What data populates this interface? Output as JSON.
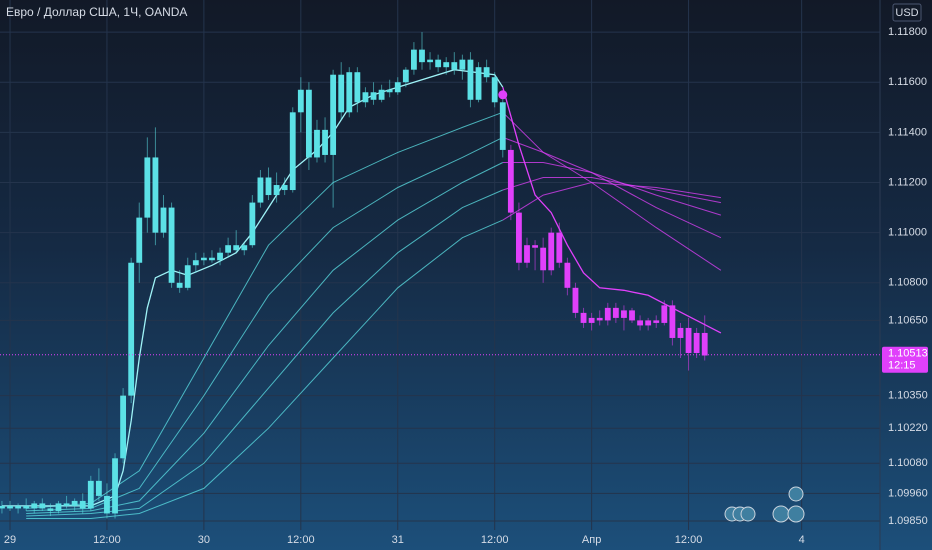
{
  "chart_data": {
    "type": "candlestick",
    "title": "Евро / Доллар США, 1Ч, OANDA",
    "currency": "USD",
    "grid": true,
    "ylim": [
      1.09814,
      1.11928
    ],
    "yticks": [
      {
        "value": 1.118,
        "label": "1.11800"
      },
      {
        "value": 1.116,
        "label": "1.11600"
      },
      {
        "value": 1.114,
        "label": "1.11400"
      },
      {
        "value": 1.112,
        "label": "1.11200"
      },
      {
        "value": 1.11,
        "label": "1.11000"
      },
      {
        "value": 1.108,
        "label": "1.10800"
      },
      {
        "value": 1.1065,
        "label": "1.10650"
      },
      {
        "value": 1.1035,
        "label": "1.10350"
      },
      {
        "value": 1.1022,
        "label": "1.10220"
      },
      {
        "value": 1.1008,
        "label": "1.10080"
      },
      {
        "value": 1.0996,
        "label": "1.09960"
      },
      {
        "value": 1.0985,
        "label": "1.09850"
      }
    ],
    "xlim": [
      -1.24,
      107.7
    ],
    "xticks": [
      {
        "value": 0,
        "label": "29"
      },
      {
        "value": 12,
        "label": "12:00"
      },
      {
        "value": 24,
        "label": "30"
      },
      {
        "value": 36,
        "label": "12:00"
      },
      {
        "value": 48,
        "label": "31"
      },
      {
        "value": 60,
        "label": "12:00"
      },
      {
        "value": 72,
        "label": "Апр"
      },
      {
        "value": 84,
        "label": "12:00"
      },
      {
        "value": 98,
        "label": "4"
      }
    ],
    "last_price": 1.10513,
    "countdown": "12:15",
    "last_price_color": "#e040fb",
    "series": [
      {
        "color": "#5ce1e6",
        "x": [
          -1,
          0,
          1,
          2,
          3,
          4,
          5,
          6,
          7,
          8,
          9,
          10,
          11,
          12,
          13,
          14,
          15,
          16,
          17,
          18,
          19,
          20,
          21,
          22,
          23,
          24,
          25,
          26,
          27,
          28,
          29,
          30,
          31,
          32,
          33,
          34,
          35,
          36,
          37,
          38,
          39,
          40,
          41,
          42,
          43,
          44,
          45,
          46,
          47,
          48,
          49,
          50,
          51,
          52,
          53,
          54,
          55,
          56,
          57,
          58,
          59,
          60,
          61
        ],
        "ohlc": [
          [
            1.099,
            1.0993,
            1.0988,
            1.0991
          ],
          [
            1.0991,
            1.0993,
            1.0989,
            1.099
          ],
          [
            1.099,
            1.0992,
            1.0988,
            1.0991
          ],
          [
            1.0991,
            1.0994,
            1.0989,
            1.099
          ],
          [
            1.099,
            1.0993,
            1.0988,
            1.0992
          ],
          [
            1.0992,
            1.0994,
            1.0989,
            1.099
          ],
          [
            1.099,
            1.0992,
            1.0987,
            1.0989
          ],
          [
            1.0989,
            1.0993,
            1.0988,
            1.0992
          ],
          [
            1.0992,
            1.0995,
            1.099,
            1.0991
          ],
          [
            1.0991,
            1.0994,
            1.0989,
            1.0993
          ],
          [
            1.0993,
            1.0996,
            1.0988,
            1.099
          ],
          [
            1.099,
            1.1003,
            1.0989,
            1.1001
          ],
          [
            1.1001,
            1.1006,
            1.0993,
            1.0995
          ],
          [
            1.0995,
            1.1,
            1.0986,
            1.0988
          ],
          [
            1.0988,
            1.1012,
            1.0986,
            1.101
          ],
          [
            1.101,
            1.1038,
            1.1008,
            1.1035
          ],
          [
            1.1035,
            1.109,
            1.1032,
            1.1088
          ],
          [
            1.1088,
            1.1112,
            1.108,
            1.1106
          ],
          [
            1.1106,
            1.1138,
            1.11,
            1.113
          ],
          [
            1.113,
            1.1142,
            1.1095,
            1.11
          ],
          [
            1.11,
            1.1115,
            1.1098,
            1.111
          ],
          [
            1.111,
            1.1112,
            1.1078,
            1.108
          ],
          [
            1.108,
            1.1085,
            1.1076,
            1.1078
          ],
          [
            1.1078,
            1.109,
            1.1077,
            1.1087
          ],
          [
            1.1087,
            1.1092,
            1.1084,
            1.1089
          ],
          [
            1.1089,
            1.1092,
            1.1087,
            1.109
          ],
          [
            1.109,
            1.1093,
            1.1088,
            1.1089
          ],
          [
            1.1089,
            1.1094,
            1.1087,
            1.1092
          ],
          [
            1.1092,
            1.1098,
            1.109,
            1.1095
          ],
          [
            1.1095,
            1.1101,
            1.1092,
            1.1093
          ],
          [
            1.1093,
            1.1096,
            1.1091,
            1.1095
          ],
          [
            1.1095,
            1.1115,
            1.1094,
            1.1112
          ],
          [
            1.1112,
            1.1125,
            1.111,
            1.1122
          ],
          [
            1.1122,
            1.1126,
            1.1113,
            1.1115
          ],
          [
            1.1115,
            1.1124,
            1.1112,
            1.1119
          ],
          [
            1.1119,
            1.1122,
            1.1115,
            1.1117
          ],
          [
            1.1117,
            1.115,
            1.1116,
            1.1148
          ],
          [
            1.1148,
            1.1162,
            1.114,
            1.1157
          ],
          [
            1.1157,
            1.116,
            1.1125,
            1.113
          ],
          [
            1.113,
            1.1145,
            1.1128,
            1.1141
          ],
          [
            1.1141,
            1.1146,
            1.1128,
            1.1131
          ],
          [
            1.1131,
            1.1165,
            1.111,
            1.1163
          ],
          [
            1.1163,
            1.1168,
            1.1145,
            1.1148
          ],
          [
            1.1148,
            1.1166,
            1.1146,
            1.1164
          ],
          [
            1.1164,
            1.1166,
            1.1148,
            1.1152
          ],
          [
            1.1152,
            1.1158,
            1.115,
            1.1156
          ],
          [
            1.1156,
            1.116,
            1.1151,
            1.1153
          ],
          [
            1.1153,
            1.1159,
            1.1152,
            1.1157
          ],
          [
            1.1157,
            1.1161,
            1.1154,
            1.1156
          ],
          [
            1.1156,
            1.1162,
            1.1155,
            1.116
          ],
          [
            1.116,
            1.1166,
            1.1158,
            1.1165
          ],
          [
            1.1165,
            1.1176,
            1.1163,
            1.1173
          ],
          [
            1.1173,
            1.118,
            1.1165,
            1.1168
          ],
          [
            1.1168,
            1.1172,
            1.1165,
            1.1169
          ],
          [
            1.1169,
            1.1171,
            1.1164,
            1.1166
          ],
          [
            1.1166,
            1.117,
            1.1163,
            1.1168
          ],
          [
            1.1168,
            1.1172,
            1.1163,
            1.1165
          ],
          [
            1.1165,
            1.1171,
            1.1161,
            1.1169
          ],
          [
            1.1169,
            1.1172,
            1.115,
            1.1153
          ],
          [
            1.1153,
            1.1168,
            1.1152,
            1.1166
          ],
          [
            1.1166,
            1.1169,
            1.116,
            1.1162
          ],
          [
            1.1162,
            1.1164,
            1.115,
            1.1152
          ],
          [
            1.1152,
            1.1155,
            1.113,
            1.1133
          ]
        ]
      },
      {
        "color": "#e040fb",
        "x": [
          62,
          63,
          64,
          65,
          66,
          67,
          68,
          69,
          70,
          71,
          72,
          73,
          74,
          75,
          76,
          77,
          78,
          79,
          80,
          81,
          82,
          83,
          84,
          85,
          86
        ],
        "ohlc": [
          [
            1.1133,
            1.1135,
            1.1105,
            1.1108
          ],
          [
            1.1108,
            1.1112,
            1.1085,
            1.1088
          ],
          [
            1.1088,
            1.1098,
            1.1086,
            1.1095
          ],
          [
            1.1095,
            1.1097,
            1.1085,
            1.1094
          ],
          [
            1.1094,
            1.1098,
            1.108,
            1.1085
          ],
          [
            1.1085,
            1.1102,
            1.1083,
            1.11
          ],
          [
            1.11,
            1.1104,
            1.1086,
            1.1088
          ],
          [
            1.1088,
            1.109,
            1.1075,
            1.1078
          ],
          [
            1.1078,
            1.108,
            1.1066,
            1.1068
          ],
          [
            1.1068,
            1.107,
            1.1062,
            1.1064
          ],
          [
            1.1064,
            1.1068,
            1.1061,
            1.1066
          ],
          [
            1.1066,
            1.1069,
            1.1063,
            1.1065
          ],
          [
            1.1065,
            1.1072,
            1.1063,
            1.107
          ],
          [
            1.107,
            1.1072,
            1.1064,
            1.1066
          ],
          [
            1.1066,
            1.1071,
            1.1061,
            1.1069
          ],
          [
            1.1069,
            1.107,
            1.1064,
            1.1065
          ],
          [
            1.1065,
            1.1067,
            1.1061,
            1.1063
          ],
          [
            1.1063,
            1.1066,
            1.1061,
            1.1065
          ],
          [
            1.1065,
            1.1067,
            1.1062,
            1.1064
          ],
          [
            1.1064,
            1.1073,
            1.1063,
            1.1071
          ],
          [
            1.1071,
            1.1073,
            1.1055,
            1.1058
          ],
          [
            1.1058,
            1.1064,
            1.105,
            1.1062
          ],
          [
            1.1062,
            1.1066,
            1.1045,
            1.1052
          ],
          [
            1.1052,
            1.1062,
            1.105,
            1.106
          ],
          [
            1.106,
            1.1067,
            1.1049,
            1.1051
          ]
        ]
      }
    ],
    "moving_average": [
      {
        "color": "#9ff3f7",
        "x": [
          -1,
          10,
          13,
          14,
          15,
          16,
          17,
          18,
          20,
          22,
          25,
          28,
          30,
          32,
          35,
          38,
          40,
          42,
          45,
          50,
          55,
          60,
          61
        ],
        "values": [
          1.0991,
          1.0991,
          1.0995,
          1.1005,
          1.1025,
          1.105,
          1.107,
          1.1082,
          1.1085,
          1.1083,
          1.1087,
          1.1092,
          1.11,
          1.111,
          1.1125,
          1.1133,
          1.114,
          1.115,
          1.1155,
          1.116,
          1.1165,
          1.1163,
          1.1158
        ]
      },
      {
        "color": "#e040fb",
        "x": [
          61,
          63,
          65,
          67,
          69,
          71,
          73,
          76,
          79,
          82,
          85,
          88
        ],
        "values": [
          1.1158,
          1.1135,
          1.1115,
          1.1108,
          1.1095,
          1.1084,
          1.1078,
          1.1077,
          1.1075,
          1.107,
          1.1065,
          1.106
        ]
      }
    ],
    "ribbon": [
      {
        "color": "#5ce1e6",
        "x": [
          2,
          10,
          16,
          24,
          32,
          40,
          48,
          56,
          61
        ],
        "values": [
          1.099,
          1.0992,
          1.1005,
          1.105,
          1.1095,
          1.112,
          1.1132,
          1.1142,
          1.1148
        ]
      },
      {
        "color": "#5ce1e6",
        "x": [
          2,
          10,
          16,
          24,
          32,
          40,
          48,
          56,
          61
        ],
        "values": [
          1.0989,
          1.099,
          1.0998,
          1.1035,
          1.1075,
          1.1102,
          1.1118,
          1.113,
          1.1138
        ]
      },
      {
        "color": "#5ce1e6",
        "x": [
          2,
          10,
          16,
          24,
          32,
          40,
          48,
          56,
          61
        ],
        "values": [
          1.0988,
          1.0989,
          1.0993,
          1.102,
          1.1055,
          1.1085,
          1.1105,
          1.112,
          1.1128
        ]
      },
      {
        "color": "#5ce1e6",
        "x": [
          2,
          10,
          16,
          24,
          32,
          40,
          48,
          56,
          61
        ],
        "values": [
          1.0987,
          1.0988,
          1.099,
          1.1008,
          1.1038,
          1.1068,
          1.1092,
          1.111,
          1.1117
        ]
      },
      {
        "color": "#5ce1e6",
        "x": [
          2,
          10,
          16,
          24,
          32,
          40,
          48,
          56,
          61
        ],
        "values": [
          1.0986,
          1.0986,
          1.0988,
          1.0998,
          1.1022,
          1.105,
          1.1078,
          1.1098,
          1.1105
        ]
      },
      {
        "color": "#e040fb",
        "x": [
          61,
          66,
          72,
          80,
          88
        ],
        "values": [
          1.1148,
          1.1132,
          1.112,
          1.1102,
          1.1085
        ]
      },
      {
        "color": "#e040fb",
        "x": [
          61,
          66,
          72,
          80,
          88
        ],
        "values": [
          1.1138,
          1.1132,
          1.1124,
          1.111,
          1.1098
        ]
      },
      {
        "color": "#e040fb",
        "x": [
          61,
          66,
          72,
          80,
          88
        ],
        "values": [
          1.1128,
          1.1128,
          1.1124,
          1.1115,
          1.1107
        ]
      },
      {
        "color": "#e040fb",
        "x": [
          61,
          66,
          72,
          80,
          88
        ],
        "values": [
          1.1117,
          1.1122,
          1.1122,
          1.1117,
          1.1112
        ]
      },
      {
        "color": "#e040fb",
        "x": [
          61,
          66,
          72,
          80,
          88
        ],
        "values": [
          1.1105,
          1.1115,
          1.112,
          1.1118,
          1.1114
        ]
      }
    ],
    "marker": {
      "x": 61,
      "y": 1.1155,
      "color": "#e040fb"
    }
  }
}
